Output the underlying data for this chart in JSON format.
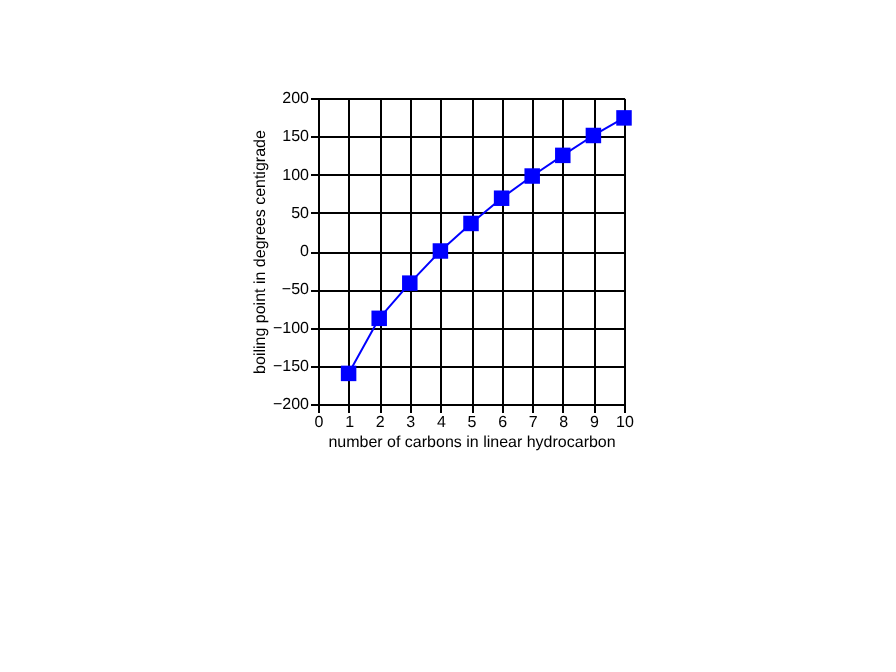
{
  "chart_data": {
    "type": "line",
    "xlabel": "number of carbons in linear hydrocarbon",
    "ylabel": "boiling point in degrees centigrade",
    "x": [
      1,
      2,
      3,
      4,
      5,
      6,
      7,
      8,
      9,
      10
    ],
    "series": [
      {
        "color": "#0000ff",
        "values": [
          -160,
          -88,
          -42,
          0,
          36,
          69,
          98,
          125,
          151,
          174
        ]
      }
    ],
    "xlim": [
      0,
      10
    ],
    "xticks": [
      0,
      1,
      2,
      3,
      4,
      5,
      6,
      7,
      8,
      9,
      10
    ],
    "ylim": [
      -200,
      200
    ],
    "yticks": [
      -200,
      -150,
      -100,
      -50,
      0,
      50,
      100,
      150,
      200
    ],
    "grid": true,
    "marker": "square",
    "line_style": "solid"
  }
}
